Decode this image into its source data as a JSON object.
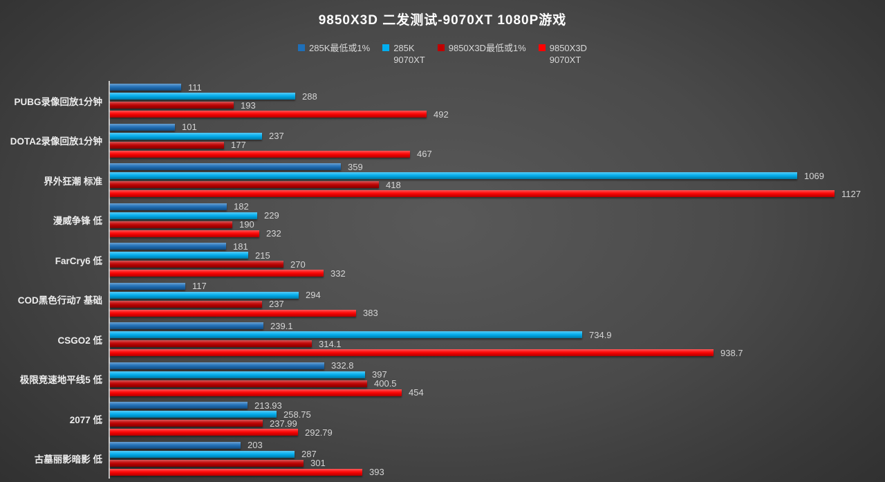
{
  "chart_data": {
    "type": "bar",
    "orientation": "horizontal",
    "title": "9850X3D 二发测试-9070XT 1080P游戏",
    "grid": false,
    "legend_position": "top",
    "xlim": [
      0,
      1180
    ],
    "categories": [
      "PUBG录像回放1分钟",
      "DOTA2录像回放1分钟",
      "界外狂潮 标准",
      "漫威争锋 低",
      "FarCry6 低",
      "COD黑色行动7 基础",
      "CSGO2 低",
      "极限竞速地平线5 低",
      "2077 低",
      "古墓丽影暗影 低"
    ],
    "series": [
      {
        "name": "285K最低或1%",
        "color": "#1e6fb8",
        "values": [
          111,
          101,
          359,
          182,
          181,
          117,
          239.1,
          332.8,
          213.93,
          203
        ]
      },
      {
        "name": "285K 9070XT",
        "color": "#00aeef",
        "values": [
          288,
          237,
          1069,
          229,
          215,
          294,
          734.9,
          397,
          258.75,
          287
        ]
      },
      {
        "name": "9850X3D最低或1%",
        "color": "#c00000",
        "values": [
          193,
          177,
          418,
          190,
          270,
          237,
          314.1,
          400.5,
          237.99,
          301
        ]
      },
      {
        "name": "9850X3D 9070XT",
        "color": "#fe0000",
        "values": [
          492,
          467,
          1127,
          232,
          332,
          383,
          938.7,
          454,
          292.79,
          393
        ]
      }
    ]
  },
  "legend": [
    {
      "line1": "285K最低或1%",
      "line2": "",
      "color": "#1e6fb8"
    },
    {
      "line1": "285K",
      "line2": "9070XT",
      "color": "#00aeef"
    },
    {
      "line1": "9850X3D最低或1%",
      "line2": "",
      "color": "#c00000"
    },
    {
      "line1": "9850X3D",
      "line2": "9070XT",
      "color": "#fe0000"
    }
  ],
  "colors": {
    "background_center": "#595959",
    "background_edge": "#2b2b2b",
    "axis_line": "#c9c9c9",
    "title_text": "#ffffff",
    "label_text": "#ededed",
    "value_text": "#d5d5d5"
  }
}
